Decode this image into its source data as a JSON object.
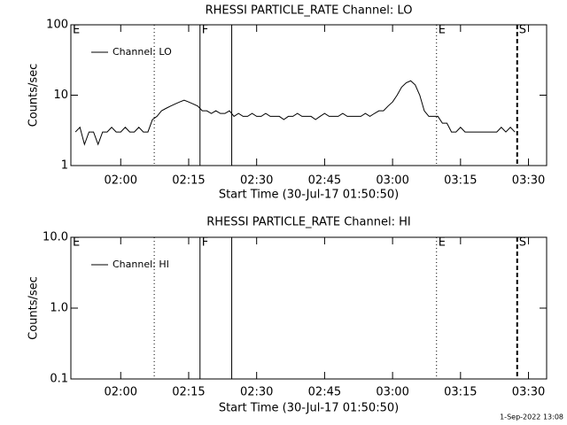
{
  "chart_data": [
    {
      "type": "line",
      "title": "RHESSI PARTICLE_RATE Channel: LO",
      "x_label": "Start Time (30-Jul-17 01:50:50)",
      "y_label": "Counts/sec",
      "log_y": true,
      "legend": "upper left",
      "xlim": [
        109,
        214
      ],
      "ylim": [
        1,
        100
      ],
      "xticks": [
        {
          "value": 120,
          "label": "02:00"
        },
        {
          "value": 135,
          "label": "02:15"
        },
        {
          "value": 150,
          "label": "02:30"
        },
        {
          "value": 165,
          "label": "02:45"
        },
        {
          "value": 180,
          "label": "03:00"
        },
        {
          "value": 195,
          "label": "03:15"
        },
        {
          "value": 210,
          "label": "03:30"
        }
      ],
      "yticks": [
        1,
        10,
        100
      ],
      "x": [
        110,
        111,
        112,
        113,
        114,
        115,
        116,
        117,
        118,
        119,
        120,
        121,
        122,
        123,
        124,
        125,
        126,
        127,
        128,
        129,
        130,
        131,
        132,
        133,
        134,
        135,
        136,
        137,
        138,
        139,
        140,
        141,
        142,
        143,
        144,
        145,
        146,
        147,
        148,
        149,
        150,
        151,
        152,
        153,
        154,
        155,
        156,
        157,
        158,
        159,
        160,
        161,
        162,
        163,
        164,
        165,
        166,
        167,
        168,
        169,
        170,
        171,
        172,
        173,
        174,
        175,
        176,
        177,
        178,
        179,
        180,
        181,
        182,
        183,
        184,
        185,
        186,
        187,
        188,
        189,
        190,
        191,
        192,
        193,
        194,
        195,
        196,
        197,
        198,
        199,
        200,
        201,
        202,
        203,
        204,
        205,
        206,
        207
      ],
      "series": [
        {
          "name": "Channel: LO",
          "color": "#000000",
          "values": [
            3,
            3.5,
            2,
            3,
            3,
            2,
            3,
            3,
            3.5,
            3,
            3,
            3.5,
            3,
            3,
            3.5,
            3,
            3,
            4.5,
            5,
            6,
            6.5,
            7,
            7.5,
            8,
            8.5,
            8,
            7.5,
            7,
            6,
            6,
            5.5,
            6,
            5.5,
            5.5,
            6,
            5,
            5.5,
            5,
            5,
            5.5,
            5,
            5,
            5.5,
            5,
            5,
            5,
            4.5,
            5,
            5,
            5.5,
            5,
            5,
            5,
            4.5,
            5,
            5.5,
            5,
            5,
            5,
            5.5,
            5,
            5,
            5,
            5,
            5.5,
            5,
            5.5,
            6,
            6,
            7,
            8,
            10,
            13,
            15,
            16,
            14,
            10,
            6,
            5,
            5,
            5,
            4,
            4,
            3,
            3,
            3.5,
            3,
            3,
            3,
            3,
            3,
            3,
            3,
            3,
            3.5,
            3,
            3.5,
            3
          ]
        }
      ],
      "markers": [
        {
          "x": 109,
          "label": "E",
          "style": "dotted"
        },
        {
          "x": 127.4,
          "style": "dotted"
        },
        {
          "x": 137.5,
          "label": "F",
          "style": "solid"
        },
        {
          "x": 144.5,
          "style": "solid"
        },
        {
          "x": 189.7,
          "label": "E",
          "style": "dotted"
        },
        {
          "x": 207.5,
          "label": "S",
          "style": "dashed"
        }
      ]
    },
    {
      "type": "line",
      "title": "RHESSI PARTICLE_RATE Channel: HI",
      "x_label": "Start Time (30-Jul-17 01:50:50)",
      "y_label": "Counts/sec",
      "log_y": true,
      "legend": "upper left",
      "xlim": [
        109,
        214
      ],
      "ylim": [
        0.1,
        10
      ],
      "xticks": [
        {
          "value": 120,
          "label": "02:00"
        },
        {
          "value": 135,
          "label": "02:15"
        },
        {
          "value": 150,
          "label": "02:30"
        },
        {
          "value": 165,
          "label": "02:45"
        },
        {
          "value": 180,
          "label": "03:00"
        },
        {
          "value": 195,
          "label": "03:15"
        },
        {
          "value": 210,
          "label": "03:30"
        }
      ],
      "yticks": [
        0.1,
        {
          "value": 1,
          "label": "1.0"
        },
        {
          "value": 10,
          "label": "10.0"
        }
      ],
      "x": [],
      "series": [
        {
          "name": "Channel: HI",
          "color": "#000000",
          "values": []
        }
      ],
      "markers": [
        {
          "x": 109,
          "label": "E",
          "style": "dotted"
        },
        {
          "x": 127.4,
          "style": "dotted"
        },
        {
          "x": 137.5,
          "label": "F",
          "style": "solid"
        },
        {
          "x": 144.5,
          "style": "solid"
        },
        {
          "x": 189.7,
          "label": "E",
          "style": "dotted"
        },
        {
          "x": 207.5,
          "label": "S",
          "style": "dashed"
        }
      ]
    }
  ],
  "footer": "1-Sep-2022 13:08"
}
